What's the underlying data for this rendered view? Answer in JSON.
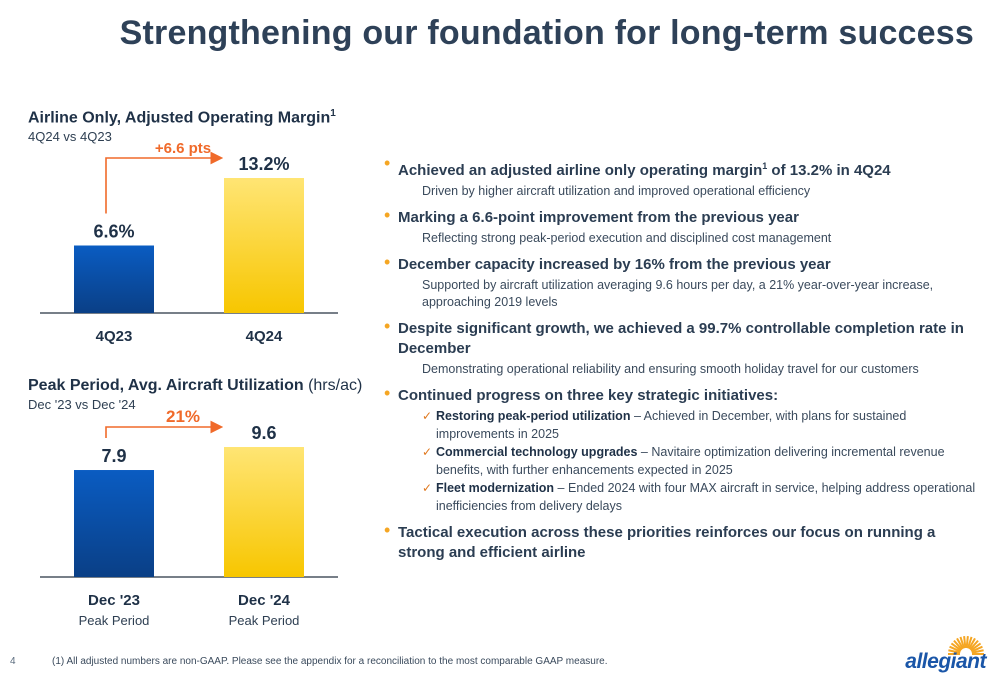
{
  "title": "Strengthening our foundation for long-term success",
  "chart1": {
    "title": "Airline Only, Adjusted Operating Margin",
    "title_sup": "1",
    "subtitle": "4Q24 vs 4Q23",
    "annotation": "+6.6 pts"
  },
  "chart2": {
    "title": "Peak Period, Avg. Aircraft Utilization",
    "title_unit": "(hrs/ac)",
    "subtitle": "Dec '23 vs Dec '24",
    "annotation": "21%"
  },
  "chart_data": [
    {
      "type": "bar",
      "title": "Airline Only, Adjusted Operating Margin",
      "subtitle": "4Q24 vs 4Q23",
      "categories": [
        "4Q23",
        "4Q24"
      ],
      "values": [
        6.6,
        13.2
      ],
      "value_labels": [
        "6.6%",
        "13.2%"
      ],
      "unit": "%",
      "ylim": [
        0,
        13.2
      ],
      "colors": [
        "#0a58b8",
        "#ffcc1a"
      ],
      "annotation": "+6.6 pts",
      "grid": false,
      "legend": "none"
    },
    {
      "type": "bar",
      "title": "Peak Period, Avg. Aircraft Utilization",
      "ylabel": "(hrs/ac)",
      "subtitle": "Dec '23 vs Dec '24",
      "categories": [
        "Dec '23",
        "Dec '24"
      ],
      "category_sublabels": [
        "Peak Period",
        "Peak Period"
      ],
      "values": [
        7.9,
        9.6
      ],
      "value_labels": [
        "7.9",
        "9.6"
      ],
      "ylim": [
        0,
        9.6
      ],
      "colors": [
        "#0a58b8",
        "#ffcc1a"
      ],
      "annotation": "21%",
      "grid": false,
      "legend": "none"
    }
  ],
  "bullets": [
    {
      "main_a": "Achieved an adjusted airline only operating margin",
      "main_sup": "1",
      "main_b": " of 13.2% in 4Q24",
      "detail": "Driven by higher aircraft utilization and improved operational efficiency"
    },
    {
      "main": "Marking a 6.6-point improvement from the previous year",
      "detail": "Reflecting strong peak-period execution and disciplined cost management"
    },
    {
      "main": "December capacity increased by 16% from the previous year",
      "detail": "Supported by aircraft utilization averaging 9.6 hours per day, a 21% year-over-year increase, approaching 2019 levels"
    },
    {
      "main": "Despite significant growth, we achieved a 99.7% controllable completion rate in December",
      "detail": "Demonstrating operational reliability and ensuring smooth holiday travel for our customers"
    },
    {
      "main": "Continued progress on three key strategic initiatives:"
    },
    {
      "main": "Tactical execution across these priorities reinforces our focus on running a strong and efficient airline"
    }
  ],
  "initiatives": [
    {
      "bold": "Restoring peak-period utilization",
      "text": " – Achieved in December, with plans for sustained improvements in 2025"
    },
    {
      "bold": "Commercial technology upgrades",
      "text": " – Navitaire optimization delivering incremental revenue benefits, with further enhancements expected in 2025"
    },
    {
      "bold": "Fleet modernization",
      "text": " – Ended 2024 with four MAX aircraft in service, helping address operational inefficiencies from delivery delays"
    }
  ],
  "footer": {
    "page_number": "4",
    "footnote": "(1)   All adjusted numbers are non-GAAP. Please see the appendix for a reconciliation to the most comparable GAAP measure."
  },
  "logo": {
    "text": "allegiant",
    "icon": "sunburst-logo-icon"
  }
}
